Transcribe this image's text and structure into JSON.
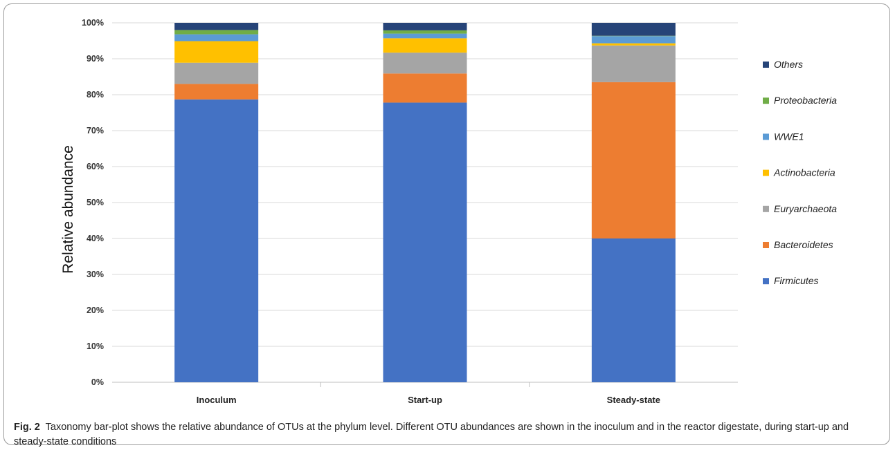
{
  "caption": {
    "label": "Fig. 2",
    "text": "Taxonomy bar-plot shows the relative abundance of OTUs at the phylum level. Different OTU abundances are shown in the inoculum and in the reactor digestate, during start-up and steady-state conditions"
  },
  "chart_data": {
    "type": "bar",
    "stacked": true,
    "categories": [
      "Inoculum",
      "Start-up",
      "Steady-state"
    ],
    "ylabel": "Relative abundance",
    "ylim": [
      0,
      100
    ],
    "yticks": [
      "0%",
      "10%",
      "20%",
      "30%",
      "40%",
      "50%",
      "60%",
      "70%",
      "80%",
      "90%",
      "100%"
    ],
    "grid": true,
    "legend_position": "right",
    "series": [
      {
        "name": "Firmicutes",
        "color": "#4472c4",
        "values": [
          78.7,
          77.8,
          40.0
        ]
      },
      {
        "name": "Bacteroidetes",
        "color": "#ed7d31",
        "values": [
          4.3,
          8.1,
          43.5
        ]
      },
      {
        "name": "Euryarchaeota",
        "color": "#a5a5a5",
        "values": [
          5.9,
          5.8,
          10.2
        ]
      },
      {
        "name": "Actinobacteria",
        "color": "#ffc000",
        "values": [
          6.0,
          4.0,
          0.6
        ]
      },
      {
        "name": "WWE1",
        "color": "#5b9bd5",
        "values": [
          1.9,
          1.3,
          2.0
        ]
      },
      {
        "name": "Proteobacteria",
        "color": "#70ad47",
        "values": [
          1.2,
          0.9,
          0.1
        ]
      },
      {
        "name": "Others",
        "color": "#264478",
        "values": [
          2.0,
          2.1,
          3.6
        ]
      }
    ]
  }
}
